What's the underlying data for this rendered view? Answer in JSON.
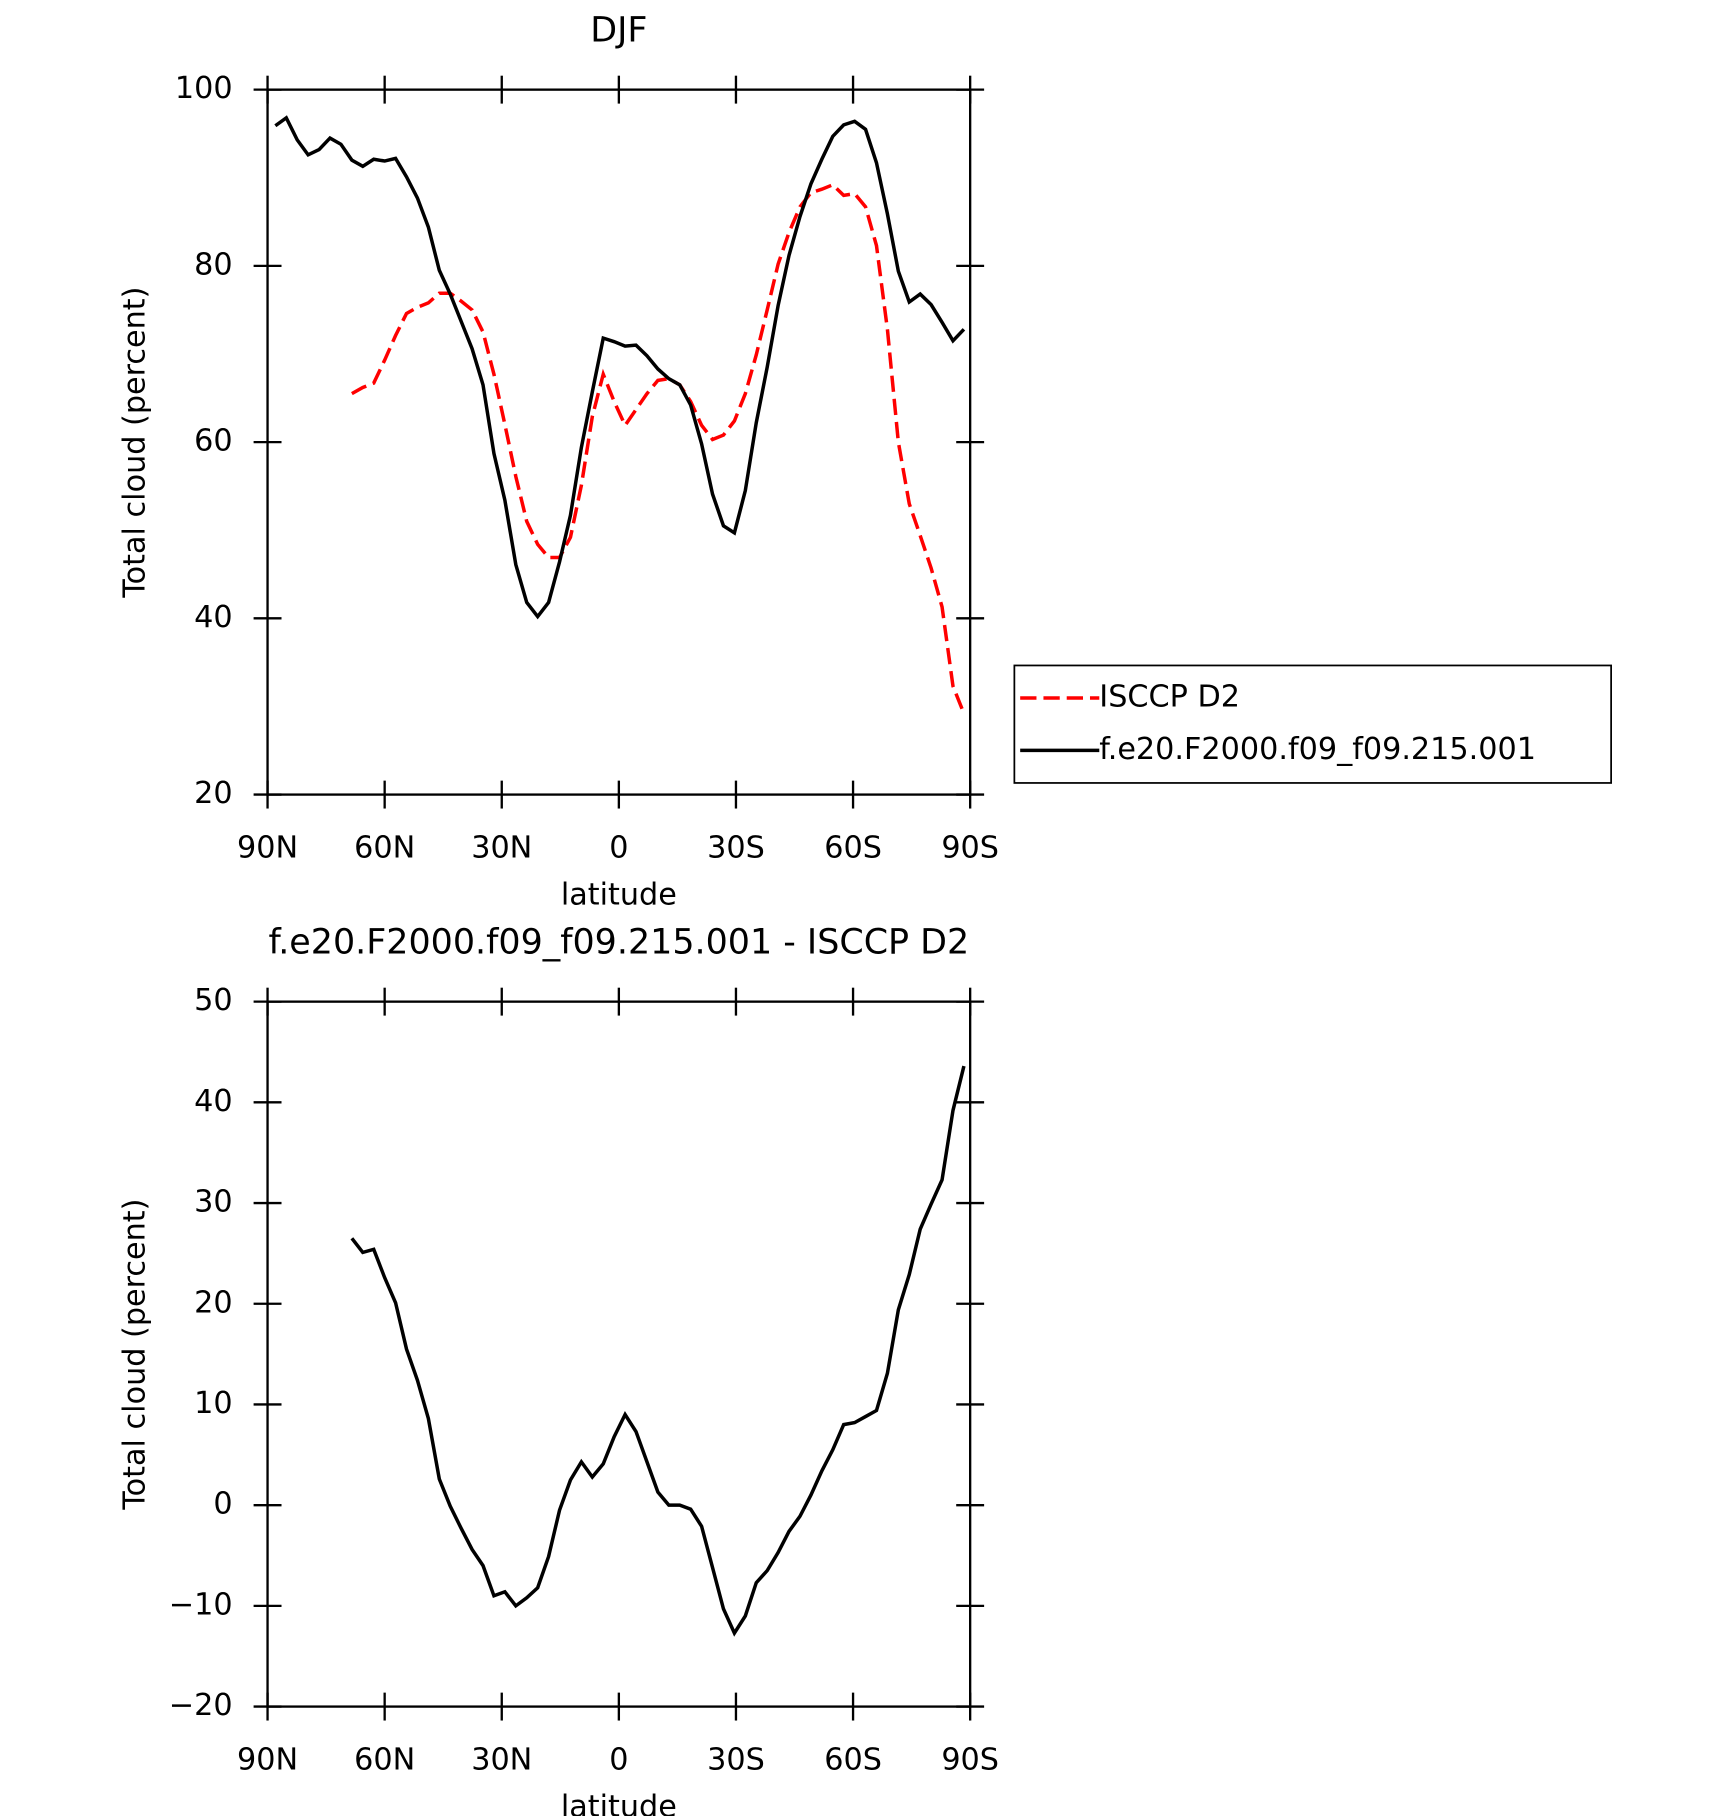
{
  "chart_data": [
    {
      "type": "line",
      "title": "DJF",
      "x_label": "latitude",
      "y_label": "Total cloud (percent)",
      "x": [
        88.0,
        85.2,
        82.4,
        79.6,
        76.8,
        74.0,
        71.2,
        68.4,
        65.6,
        62.8,
        60.0,
        57.2,
        54.4,
        51.6,
        48.8,
        46.0,
        43.2,
        40.4,
        37.6,
        34.8,
        32.0,
        29.2,
        26.4,
        23.6,
        20.8,
        18.0,
        15.2,
        12.4,
        9.6,
        6.8,
        4.0,
        1.2,
        -1.6,
        -4.4,
        -7.2,
        -10.0,
        -12.8,
        -15.6,
        -18.4,
        -21.2,
        -24.0,
        -26.8,
        -29.6,
        -32.4,
        -35.2,
        -38.0,
        -40.8,
        -43.6,
        -46.4,
        -49.2,
        -52.0,
        -54.8,
        -57.6,
        -60.4,
        -63.2,
        -66.0,
        -68.8,
        -71.6,
        -74.4,
        -77.2,
        -80.0,
        -82.8,
        -85.6,
        -88.4
      ],
      "xlim": [
        90,
        -90
      ],
      "xticks": [
        {
          "value": 90,
          "label": "90N"
        },
        {
          "value": 60,
          "label": "60N"
        },
        {
          "value": 30,
          "label": "30N"
        },
        0,
        {
          "value": -30,
          "label": "30S"
        },
        {
          "value": -60,
          "label": "60S"
        },
        {
          "value": -90,
          "label": "90S"
        }
      ],
      "ylim": [
        20,
        100
      ],
      "yticks": [
        20,
        40,
        60,
        80,
        100
      ],
      "legend": "right",
      "series": [
        {
          "name": "ISCCP D2",
          "color": "#ff0000",
          "dash": "dashed",
          "values": [
            null,
            null,
            null,
            null,
            null,
            null,
            null,
            65.5,
            66.2,
            66.7,
            69.3,
            72.1,
            74.6,
            75.3,
            75.8,
            76.9,
            76.9,
            76.0,
            75.0,
            72.5,
            67.7,
            62.0,
            56.1,
            51.0,
            48.4,
            46.9,
            46.9,
            49.2,
            55.1,
            62.9,
            67.7,
            64.6,
            61.9,
            63.7,
            65.5,
            67.0,
            67.2,
            66.5,
            64.6,
            61.9,
            60.3,
            60.8,
            62.4,
            65.5,
            69.9,
            75.0,
            80.2,
            83.8,
            86.7,
            88.3,
            88.7,
            89.2,
            88.0,
            88.2,
            86.7,
            82.3,
            72.8,
            60.0,
            53.0,
            49.4,
            45.7,
            41.3,
            32.3,
            29.2
          ]
        },
        {
          "name": "f.e20.F2000.f09_f09.215.001",
          "color": "#000000",
          "values": [
            95.9,
            96.8,
            94.3,
            92.6,
            93.2,
            94.5,
            93.8,
            92.0,
            91.3,
            92.1,
            91.9,
            92.2,
            90.1,
            87.7,
            84.4,
            79.5,
            76.8,
            73.7,
            70.6,
            66.5,
            58.7,
            53.4,
            46.1,
            41.8,
            40.2,
            41.8,
            46.4,
            51.7,
            59.4,
            65.7,
            71.8,
            71.4,
            70.9,
            71.0,
            69.8,
            68.3,
            67.2,
            66.5,
            64.2,
            59.8,
            54.1,
            50.5,
            49.7,
            54.5,
            62.2,
            68.5,
            75.5,
            81.2,
            85.6,
            89.3,
            92.1,
            94.7,
            96.0,
            96.4,
            95.5,
            91.7,
            85.9,
            79.4,
            75.9,
            76.8,
            75.6,
            73.6,
            71.5,
            72.8
          ]
        }
      ]
    },
    {
      "type": "line",
      "title": "f.e20.F2000.f09_f09.215.001 - ISCCP D2",
      "x_label": "latitude",
      "y_label": "Total cloud (percent)",
      "x": [
        88.0,
        85.2,
        82.4,
        79.6,
        76.8,
        74.0,
        71.2,
        68.4,
        65.6,
        62.8,
        60.0,
        57.2,
        54.4,
        51.6,
        48.8,
        46.0,
        43.2,
        40.4,
        37.6,
        34.8,
        32.0,
        29.2,
        26.4,
        23.6,
        20.8,
        18.0,
        15.2,
        12.4,
        9.6,
        6.8,
        4.0,
        1.2,
        -1.6,
        -4.4,
        -7.2,
        -10.0,
        -12.8,
        -15.6,
        -18.4,
        -21.2,
        -24.0,
        -26.8,
        -29.6,
        -32.4,
        -35.2,
        -38.0,
        -40.8,
        -43.6,
        -46.4,
        -49.2,
        -52.0,
        -54.8,
        -57.6,
        -60.4,
        -63.2,
        -66.0,
        -68.8,
        -71.6,
        -74.4,
        -77.2,
        -80.0,
        -82.8,
        -85.6,
        -88.4
      ],
      "xlim": [
        90,
        -90
      ],
      "xticks": [
        {
          "value": 90,
          "label": "90N"
        },
        {
          "value": 60,
          "label": "60N"
        },
        {
          "value": 30,
          "label": "30N"
        },
        0,
        {
          "value": -30,
          "label": "30S"
        },
        {
          "value": -60,
          "label": "60S"
        },
        {
          "value": -90,
          "label": "90S"
        }
      ],
      "ylim": [
        -20,
        50
      ],
      "yticks": [
        {
          "value": -20,
          "label": "−20"
        },
        {
          "value": -10,
          "label": "−10"
        },
        0,
        10,
        20,
        30,
        40,
        50
      ],
      "series": [
        {
          "color": "#000000",
          "values": [
            null,
            null,
            null,
            null,
            null,
            null,
            null,
            26.5,
            25.1,
            25.4,
            22.6,
            20.1,
            15.5,
            12.4,
            8.6,
            2.6,
            -0.1,
            -2.3,
            -4.4,
            -6.0,
            -9.0,
            -8.6,
            -10.0,
            -9.2,
            -8.2,
            -5.1,
            -0.5,
            2.5,
            4.3,
            2.8,
            4.1,
            6.8,
            9.0,
            7.3,
            4.3,
            1.3,
            0.0,
            0.0,
            -0.4,
            -2.1,
            -6.2,
            -10.3,
            -12.7,
            -11.0,
            -7.7,
            -6.5,
            -4.7,
            -2.6,
            -1.1,
            1.0,
            3.4,
            5.5,
            8.0,
            8.2,
            8.8,
            9.4,
            13.1,
            19.4,
            22.9,
            27.4,
            29.9,
            32.3,
            39.2,
            43.6
          ]
        }
      ]
    }
  ]
}
